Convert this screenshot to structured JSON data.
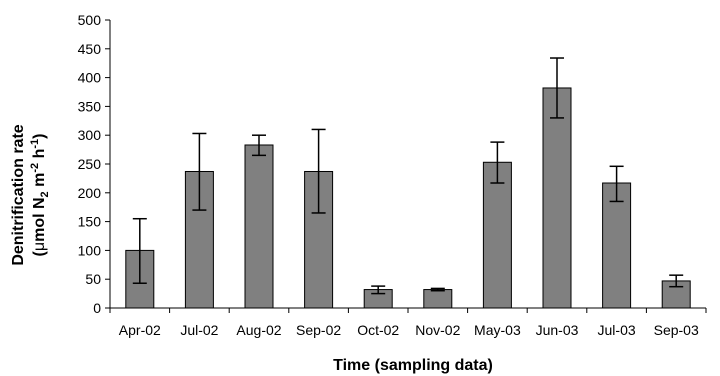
{
  "chart_data": {
    "type": "bar",
    "xlabel": "Time (sampling data)",
    "ylabel_line1": "Denitrification rate",
    "ylabel_line2": {
      "open": "(",
      "mu": "μ",
      "mol": "mol N",
      "sub2": "2",
      "m": " m",
      "sup_m": "-2",
      "h": " h",
      "sup_h": "-1",
      "close": ")"
    },
    "categories": [
      "Apr-02",
      "Jul-02",
      "Aug-02",
      "Sep-02",
      "Oct-02",
      "Nov-02",
      "May-03",
      "Jun-03",
      "Jul-03",
      "Sep-03"
    ],
    "values": [
      100,
      237,
      283,
      237,
      32,
      32,
      253,
      382,
      217,
      47
    ],
    "error_low": [
      43,
      170,
      265,
      165,
      25,
      30,
      217,
      330,
      185,
      37
    ],
    "error_high": [
      155,
      303,
      300,
      310,
      38,
      34,
      288,
      434,
      246,
      57
    ],
    "ylim": [
      0,
      500
    ],
    "yticks": [
      0,
      50,
      100,
      150,
      200,
      250,
      300,
      350,
      400,
      450,
      500
    ],
    "grid": false,
    "colors": {
      "bar_fill": "#808080",
      "bar_stroke": "#000000",
      "axis": "#000000"
    }
  }
}
